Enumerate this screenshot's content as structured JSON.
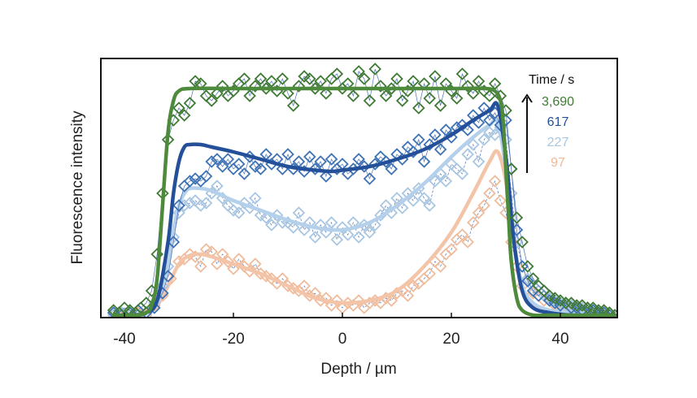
{
  "chart_data": {
    "type": "line",
    "title": "",
    "xlabel": "Depth / µm",
    "ylabel": "Fluorescence intensity",
    "xlim": [
      -44,
      50
    ],
    "ylim": [
      -0.013,
      1.057
    ],
    "xticks": [
      -40,
      -20,
      0,
      20,
      40
    ],
    "xtick_labels": [
      "-40",
      "-20",
      "0",
      "20",
      "40"
    ],
    "yticks": [],
    "grid": false,
    "legend": {
      "title": "Time / s",
      "placement": "top-right",
      "arrow": "increasing-time-upward",
      "entries": [
        {
          "label": "3,690",
          "color": "#3f7a34"
        },
        {
          "label": "617",
          "color": "#24509a"
        },
        {
          "label": "227",
          "color": "#a8c6e2"
        },
        {
          "label": "97",
          "color": "#f0b896"
        }
      ]
    },
    "series": [
      {
        "name": "97",
        "line_color": "#f3c4a7",
        "marker_color": "#efbb9b",
        "fit": {
          "x": [
            -42,
            -38,
            -36,
            -34,
            -32,
            -30,
            -28,
            -26,
            -24,
            -20,
            -15,
            -10,
            -5,
            0,
            5,
            10,
            15,
            20,
            24,
            27,
            28.5,
            30,
            31.5,
            33,
            35,
            38,
            42,
            46,
            50
          ],
          "y": [
            0.0,
            0.0,
            0.01,
            0.04,
            0.12,
            0.21,
            0.245,
            0.25,
            0.24,
            0.21,
            0.17,
            0.12,
            0.07,
            0.05,
            0.06,
            0.1,
            0.2,
            0.34,
            0.5,
            0.63,
            0.67,
            0.55,
            0.3,
            0.12,
            0.04,
            0.01,
            0.0,
            0.0,
            0.0
          ]
        },
        "points": {
          "x": [
            -42,
            -40.5,
            -39,
            -37.5,
            -36,
            -34.5,
            -33,
            -31.5,
            -30,
            -29,
            -28,
            -27,
            -26,
            -25,
            -24,
            -23,
            -22,
            -21,
            -20,
            -19,
            -18,
            -17,
            -16,
            -15,
            -14,
            -13,
            -12,
            -11,
            -10,
            -9,
            -8,
            -7,
            -6,
            -5,
            -4,
            -3,
            -2,
            -1,
            0,
            1,
            2,
            3,
            4,
            5,
            6,
            7,
            8,
            9,
            10,
            11,
            12,
            13,
            14,
            15,
            16,
            17,
            18,
            19,
            20,
            21,
            22,
            23,
            24,
            25,
            26,
            27,
            28,
            29,
            30,
            31,
            32,
            33,
            34,
            35,
            36,
            37,
            38,
            39,
            40,
            41,
            42,
            43,
            44,
            45,
            46,
            47,
            48,
            49
          ],
          "y": [
            0.0,
            -0.01,
            0.0,
            0.01,
            0.0,
            0.04,
            0.08,
            0.15,
            0.22,
            0.23,
            0.25,
            0.24,
            0.2,
            0.27,
            0.26,
            0.21,
            0.25,
            0.22,
            0.19,
            0.23,
            0.2,
            0.18,
            0.21,
            0.17,
            0.16,
            0.15,
            0.13,
            0.15,
            0.12,
            0.11,
            0.1,
            0.12,
            0.08,
            0.09,
            0.06,
            0.07,
            0.04,
            0.06,
            0.03,
            0.05,
            0.04,
            0.06,
            0.03,
            0.05,
            0.06,
            0.05,
            0.07,
            0.06,
            0.09,
            0.1,
            0.08,
            0.12,
            0.13,
            0.15,
            0.17,
            0.22,
            0.2,
            0.25,
            0.27,
            0.31,
            0.33,
            0.3,
            0.38,
            0.42,
            0.45,
            0.5,
            0.55,
            0.47,
            0.42,
            0.3,
            0.2,
            0.12,
            0.15,
            0.09,
            0.1,
            0.06,
            0.07,
            0.04,
            0.05,
            0.03,
            0.04,
            0.02,
            0.03,
            0.02,
            0.01,
            0.01,
            0.0,
            0.01
          ]
        }
      },
      {
        "name": "227",
        "line_color": "#b4d0ea",
        "marker_color": "#a8c6e2",
        "fit": {
          "x": [
            -42,
            -38,
            -36,
            -34,
            -32,
            -31,
            -30,
            -29,
            -28,
            -26,
            -24,
            -20,
            -15,
            -10,
            -5,
            0,
            5,
            10,
            15,
            20,
            24,
            27,
            28.5,
            30,
            31.5,
            33,
            35,
            38,
            42,
            46,
            50
          ],
          "y": [
            0.0,
            0.0,
            0.01,
            0.05,
            0.2,
            0.35,
            0.45,
            0.5,
            0.52,
            0.52,
            0.51,
            0.47,
            0.43,
            0.39,
            0.36,
            0.35,
            0.38,
            0.45,
            0.54,
            0.65,
            0.73,
            0.78,
            0.79,
            0.6,
            0.3,
            0.12,
            0.05,
            0.02,
            0.01,
            0.0,
            0.0
          ]
        },
        "points": {
          "x": [
            -42,
            -40.5,
            -39,
            -37.5,
            -36,
            -34.5,
            -33,
            -32,
            -31,
            -30,
            -29,
            -28,
            -27,
            -26,
            -25,
            -24,
            -23,
            -22,
            -21,
            -20,
            -19,
            -18,
            -17,
            -16,
            -15,
            -14,
            -13,
            -12,
            -11,
            -10,
            -9,
            -8,
            -7,
            -6,
            -5,
            -4,
            -3,
            -2,
            -1,
            0,
            1,
            2,
            3,
            4,
            5,
            6,
            7,
            8,
            9,
            10,
            11,
            12,
            13,
            14,
            15,
            16,
            17,
            18,
            19,
            20,
            21,
            22,
            23,
            24,
            25,
            26,
            27,
            28,
            29,
            30,
            31,
            32,
            33,
            34,
            35,
            36,
            37,
            38,
            39,
            40,
            41,
            42,
            43,
            44,
            45,
            46,
            47,
            48,
            49,
            50
          ],
          "y": [
            0.0,
            0.01,
            0.0,
            0.02,
            0.01,
            0.05,
            0.12,
            0.2,
            0.32,
            0.42,
            0.45,
            0.46,
            0.47,
            0.45,
            0.46,
            0.5,
            0.53,
            0.48,
            0.45,
            0.43,
            0.42,
            0.46,
            0.44,
            0.48,
            0.41,
            0.4,
            0.37,
            0.41,
            0.38,
            0.38,
            0.36,
            0.42,
            0.35,
            0.38,
            0.32,
            0.37,
            0.34,
            0.38,
            0.31,
            0.36,
            0.33,
            0.38,
            0.32,
            0.37,
            0.34,
            0.37,
            0.41,
            0.45,
            0.42,
            0.48,
            0.44,
            0.5,
            0.47,
            0.52,
            0.48,
            0.45,
            0.55,
            0.58,
            0.55,
            0.62,
            0.6,
            0.58,
            0.66,
            0.7,
            0.63,
            0.72,
            0.75,
            0.74,
            0.77,
            0.72,
            0.5,
            0.3,
            0.2,
            0.15,
            0.12,
            0.1,
            0.08,
            0.07,
            0.06,
            0.05,
            0.04,
            0.04,
            0.03,
            0.03,
            0.02,
            0.02,
            0.01,
            0.01,
            0.01,
            0.0
          ]
        }
      },
      {
        "name": "617",
        "line_color": "#24509a",
        "marker_color": "#3d72b4",
        "fit": {
          "x": [
            -42,
            -38,
            -36,
            -34,
            -32,
            -31,
            -30,
            -29,
            -28,
            -26,
            -24,
            -20,
            -15,
            -10,
            -5,
            -2,
            0,
            5,
            10,
            15,
            20,
            24,
            27,
            28.5,
            30,
            31.5,
            33,
            35,
            38,
            42,
            46,
            50
          ],
          "y": [
            0.0,
            0.0,
            0.01,
            0.06,
            0.3,
            0.5,
            0.63,
            0.69,
            0.7,
            0.7,
            0.69,
            0.67,
            0.64,
            0.61,
            0.595,
            0.59,
            0.595,
            0.61,
            0.64,
            0.68,
            0.74,
            0.8,
            0.84,
            0.86,
            0.65,
            0.3,
            0.1,
            0.03,
            0.01,
            0.0,
            0.0,
            0.0
          ]
        },
        "points": {
          "x": [
            -42,
            -40.5,
            -39,
            -37.5,
            -36,
            -34.5,
            -33,
            -32,
            -31,
            -30,
            -29,
            -28,
            -27,
            -26,
            -25,
            -24,
            -23,
            -22,
            -21,
            -20,
            -19,
            -18,
            -17,
            -16,
            -15,
            -14,
            -13,
            -12,
            -11,
            -10,
            -9,
            -8,
            -7,
            -6,
            -5,
            -4,
            -3,
            -2,
            -1,
            0,
            1,
            2,
            3,
            4,
            5,
            6,
            7,
            8,
            9,
            10,
            11,
            12,
            13,
            14,
            15,
            16,
            17,
            18,
            19,
            20,
            21,
            22,
            23,
            24,
            25,
            26,
            27,
            28,
            29,
            30,
            31,
            32,
            33,
            34,
            35,
            36,
            37,
            38,
            39,
            40,
            41,
            42,
            43,
            44,
            45,
            46,
            47,
            48,
            49
          ],
          "y": [
            0.01,
            0.0,
            0.01,
            0.02,
            0.01,
            0.03,
            0.09,
            0.16,
            0.3,
            0.45,
            0.53,
            0.55,
            0.56,
            0.55,
            0.57,
            0.63,
            0.64,
            0.61,
            0.64,
            0.6,
            0.62,
            0.58,
            0.65,
            0.61,
            0.6,
            0.66,
            0.62,
            0.64,
            0.6,
            0.66,
            0.6,
            0.63,
            0.59,
            0.65,
            0.6,
            0.63,
            0.57,
            0.64,
            0.6,
            0.62,
            0.58,
            0.6,
            0.64,
            0.61,
            0.56,
            0.62,
            0.65,
            0.63,
            0.6,
            0.66,
            0.64,
            0.69,
            0.67,
            0.72,
            0.63,
            0.7,
            0.74,
            0.68,
            0.76,
            0.73,
            0.77,
            0.78,
            0.76,
            0.82,
            0.79,
            0.85,
            0.8,
            0.83,
            0.78,
            0.8,
            0.6,
            0.35,
            0.2,
            0.14,
            0.1,
            0.08,
            0.1,
            0.06,
            0.05,
            0.04,
            0.05,
            0.03,
            0.03,
            0.02,
            0.03,
            0.02,
            0.01,
            0.01,
            0.0
          ]
        }
      },
      {
        "name": "3,690",
        "line_color": "#4e8a3b",
        "marker_color": "#3f7a34",
        "fit": {
          "x": [
            -42,
            -38,
            -36,
            -35,
            -34,
            -33,
            -32,
            -31,
            -30,
            -28,
            -20,
            -10,
            0,
            10,
            20,
            26,
            28,
            29,
            29.5,
            30,
            30.5,
            31,
            32,
            33,
            35,
            38,
            42,
            46,
            50
          ],
          "y": [
            0.0,
            0.0,
            0.01,
            0.04,
            0.15,
            0.45,
            0.75,
            0.88,
            0.92,
            0.93,
            0.93,
            0.93,
            0.93,
            0.93,
            0.93,
            0.93,
            0.92,
            0.88,
            0.8,
            0.6,
            0.4,
            0.22,
            0.07,
            0.02,
            0.0,
            0.0,
            0.0,
            0.0,
            0.0
          ]
        },
        "points": {
          "x": [
            -42,
            -41,
            -40,
            -39,
            -38,
            -37,
            -36,
            -35,
            -34,
            -33,
            -32,
            -31,
            -30,
            -29,
            -28,
            -27,
            -26,
            -25,
            -24,
            -23,
            -22,
            -21,
            -20,
            -19,
            -18,
            -17,
            -16,
            -15,
            -14,
            -13,
            -12,
            -11,
            -10,
            -9,
            -8,
            -7,
            -6,
            -5,
            -4,
            -3,
            -2,
            -1,
            0,
            1,
            2,
            3,
            4,
            5,
            6,
            7,
            8,
            9,
            10,
            11,
            12,
            13,
            14,
            15,
            16,
            17,
            18,
            19,
            20,
            21,
            22,
            23,
            24,
            25,
            26,
            27,
            28,
            29,
            30,
            31,
            32,
            33,
            34,
            35,
            36,
            37,
            38,
            39,
            40,
            41,
            42,
            43,
            44,
            45,
            46,
            47,
            48,
            49,
            50
          ],
          "y": [
            0.02,
            0.01,
            0.03,
            0.02,
            0.01,
            0.03,
            0.05,
            0.1,
            0.25,
            0.5,
            0.72,
            0.8,
            0.85,
            0.82,
            0.87,
            0.96,
            0.95,
            0.9,
            0.88,
            0.91,
            0.94,
            0.9,
            0.92,
            0.95,
            0.97,
            0.9,
            0.94,
            0.97,
            0.93,
            0.96,
            0.92,
            0.97,
            0.91,
            0.86,
            0.94,
            0.98,
            0.97,
            0.93,
            0.96,
            0.91,
            0.97,
            0.99,
            0.93,
            0.95,
            0.9,
            1.0,
            0.97,
            0.88,
            1.01,
            0.94,
            0.9,
            0.93,
            0.97,
            0.88,
            0.92,
            0.96,
            0.85,
            0.95,
            0.89,
            0.98,
            0.86,
            0.95,
            0.92,
            0.89,
            0.99,
            0.94,
            0.91,
            0.96,
            0.92,
            0.9,
            0.95,
            0.9,
            0.84,
            0.6,
            0.4,
            0.3,
            0.2,
            0.15,
            0.12,
            0.1,
            0.08,
            0.07,
            0.06,
            0.05,
            0.05,
            0.04,
            0.04,
            0.03,
            0.03,
            0.02,
            0.02,
            0.01,
            0.0
          ]
        }
      }
    ]
  }
}
